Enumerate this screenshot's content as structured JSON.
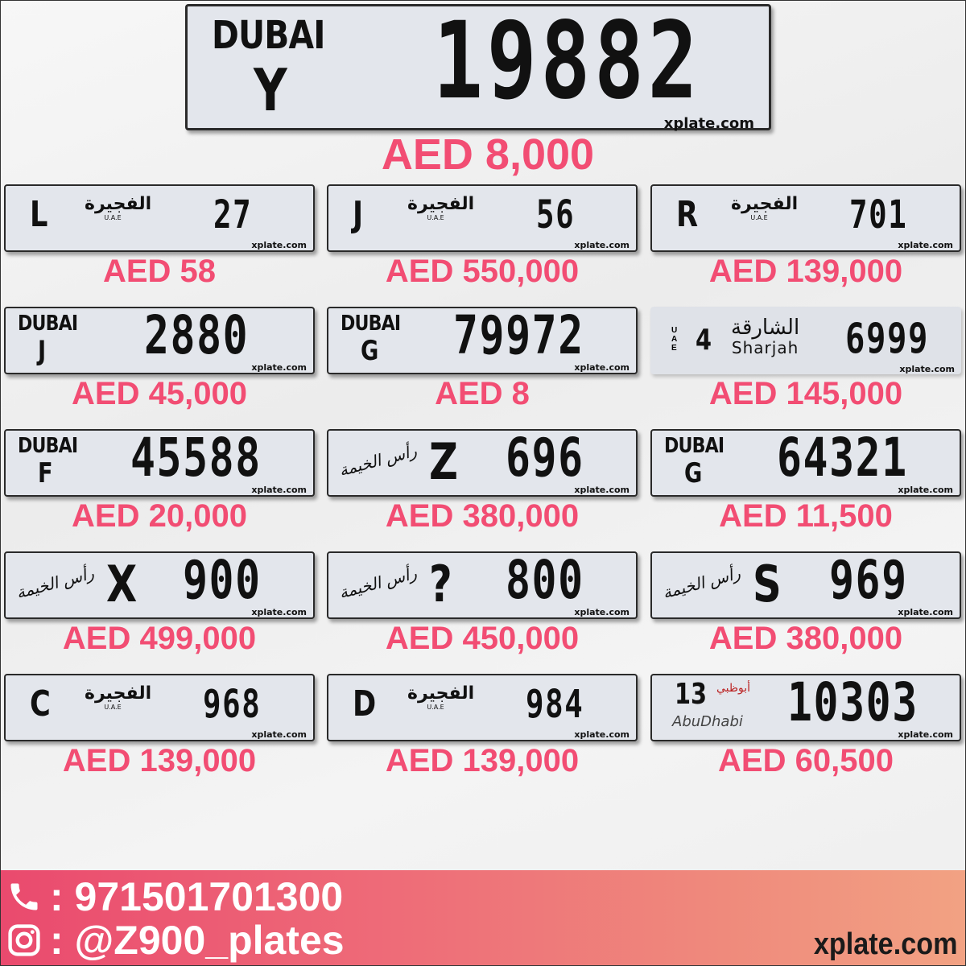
{
  "featured": {
    "emirate": "dubai",
    "logo": "DUBAI",
    "code": "Y",
    "number": "19882",
    "price": "AED 8,000",
    "watermark": "xplate.com"
  },
  "plates": [
    {
      "emirate": "fujairah",
      "logo": "الفجيرة",
      "sub": "U.A.E",
      "code": "L",
      "number": "27",
      "price": "AED 58"
    },
    {
      "emirate": "fujairah",
      "logo": "الفجيرة",
      "sub": "U.A.E",
      "code": "J",
      "number": "56",
      "price": "AED 550,000"
    },
    {
      "emirate": "fujairah",
      "logo": "الفجيرة",
      "sub": "U.A.E",
      "code": "R",
      "number": "701",
      "price": "AED 139,000"
    },
    {
      "emirate": "dubai",
      "logo": "DUBAI",
      "code": "J",
      "number": "2880",
      "price": "AED 45,000"
    },
    {
      "emirate": "dubai",
      "logo": "DUBAI",
      "code": "G",
      "number": "79972",
      "price": "AED 8"
    },
    {
      "emirate": "sharjah",
      "logo": "الشارقة",
      "logo_en": "Sharjah",
      "sub": "UAE",
      "code": "4",
      "number": "6999",
      "price": "AED 145,000"
    },
    {
      "emirate": "dubai",
      "logo": "DUBAI",
      "code": "F",
      "number": "45588",
      "price": "AED 20,000"
    },
    {
      "emirate": "rak",
      "logo": "رأس الخيمة",
      "code": "Z",
      "number": "696",
      "price": "AED 380,000"
    },
    {
      "emirate": "dubai",
      "logo": "DUBAI",
      "code": "G",
      "number": "64321",
      "price": "AED 11,500"
    },
    {
      "emirate": "rak",
      "logo": "رأس الخيمة",
      "code": "X",
      "number": "900",
      "price": "AED 499,000"
    },
    {
      "emirate": "rak",
      "logo": "رأس الخيمة",
      "code": "?",
      "number": "800",
      "price": "AED 450,000"
    },
    {
      "emirate": "rak",
      "logo": "رأس الخيمة",
      "code": "S",
      "number": "969",
      "price": "AED 380,000"
    },
    {
      "emirate": "fujairah",
      "logo": "الفجيرة",
      "sub": "U.A.E",
      "code": "C",
      "number": "968",
      "price": "AED 139,000"
    },
    {
      "emirate": "fujairah",
      "logo": "الفجيرة",
      "sub": "U.A.E",
      "code": "D",
      "number": "984",
      "price": "AED 139,000"
    },
    {
      "emirate": "abudhabi",
      "logo": "أبوظبي",
      "logo_en": "AbuDhabi",
      "code": "13",
      "number": "10303",
      "price": "AED 60,500"
    }
  ],
  "plate_watermark": "xplate.com",
  "footer": {
    "phone_icon": "phone-icon",
    "phone": ": 971501701300",
    "instagram_icon": "instagram-icon",
    "instagram": ": @Z900_plates",
    "site": "xplate.com"
  },
  "colors": {
    "price": "#f24d73",
    "footer_start": "#ea4a6e",
    "footer_end": "#f2a283"
  }
}
